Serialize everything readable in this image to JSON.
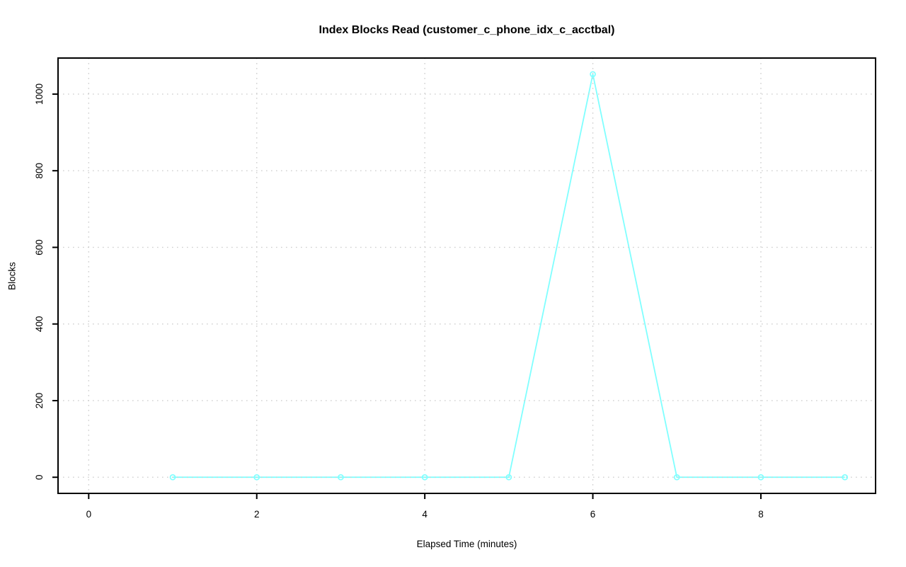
{
  "chart_data": {
    "type": "line",
    "title": "Index Blocks Read (customer_c_phone_idx_c_acctbal)",
    "xlabel": "Elapsed Time (minutes)",
    "ylabel": "Blocks",
    "x": [
      1,
      2,
      3,
      4,
      5,
      6,
      7,
      8,
      9
    ],
    "series": [
      {
        "name": "Blocks",
        "values": [
          0,
          0,
          0,
          0,
          0,
          1052,
          0,
          0,
          0
        ],
        "color": "#80ffff",
        "marker": "open-circle",
        "line_type": "o"
      }
    ],
    "xlim": [
      -0.365,
      9.365
    ],
    "ylim": [
      -42.1,
      1094.1
    ],
    "xticks": [
      0,
      2,
      4,
      6,
      8
    ],
    "yticks": [
      0,
      200,
      400,
      600,
      800,
      1000
    ],
    "grid": true,
    "grid_style": "dotted",
    "grid_color": "#cfcfcf",
    "axis_color": "#000000",
    "tick_label_color": "#000000",
    "legend_position": "none",
    "background": "#ffffff"
  }
}
